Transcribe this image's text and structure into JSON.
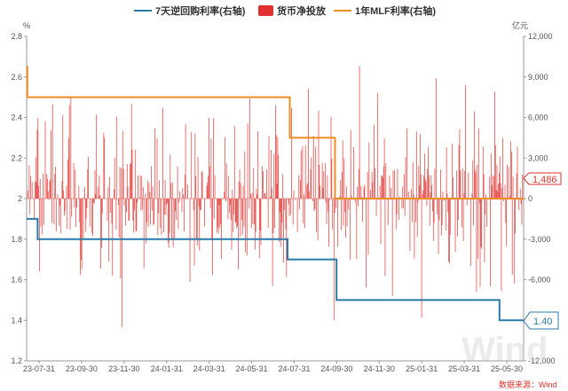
{
  "chart_data": {
    "type": "bar+line",
    "legend": [
      {
        "name": "7天逆回购利率(右轴)",
        "color": "#2a7aa8",
        "kind": "line"
      },
      {
        "name": "货币净投放",
        "color": "#e0312e",
        "kind": "bar"
      },
      {
        "name": "1年MLF利率(右轴)",
        "color": "#ef8c24",
        "kind": "line"
      }
    ],
    "left_axis": {
      "unit": "%",
      "ylim": [
        1.2,
        2.8
      ],
      "ticks": [
        "1.2",
        "1.4",
        "1.6",
        "1.8",
        "2",
        "2.2",
        "2.4",
        "2.6",
        "2.8"
      ]
    },
    "right_axis": {
      "unit": "亿元",
      "ylim": [
        -12000,
        12000
      ],
      "ticks": [
        "-12,000",
        "-9,000",
        "-6,000",
        "-3,000",
        "0",
        "3,000",
        "6,000",
        "9,000",
        "12,000"
      ]
    },
    "x_ticks": [
      "23-07-31",
      "23-09-30",
      "23-11-30",
      "24-01-31",
      "24-03-31",
      "24-05-31",
      "24-07-31",
      "24-09-30",
      "24-11-30",
      "25-01-31",
      "25-03-31",
      "25-05-30"
    ],
    "x_range": [
      "2023-07-31",
      "2025-06-10"
    ],
    "series": [
      {
        "name": "7天逆回购利率(右轴)",
        "axis": "left",
        "step_points": [
          [
            "2023-07-31",
            1.9
          ],
          [
            "2023-08-15",
            1.8
          ],
          [
            "2024-07-22",
            1.7
          ],
          [
            "2024-09-27",
            1.5
          ],
          [
            "2025-05-08",
            1.4
          ],
          [
            "2025-06-10",
            1.4
          ]
        ]
      },
      {
        "name": "1年MLF利率(右轴)",
        "axis": "left",
        "step_points": [
          [
            "2023-07-31",
            2.65
          ],
          [
            "2023-08-01",
            2.5
          ],
          [
            "2024-07-25",
            2.3
          ],
          [
            "2024-09-25",
            2.0
          ],
          [
            "2025-06-10",
            2.0
          ]
        ]
      },
      {
        "name": "货币净投放",
        "axis": "right",
        "note": "daily net liquidity injection, 亿元",
        "seed": 20230731
      }
    ],
    "end_labels": {
      "net_injection": "1,486",
      "reverse_repo": "1.40"
    }
  },
  "source": "数据来源：Wind",
  "watermark": "Wind"
}
